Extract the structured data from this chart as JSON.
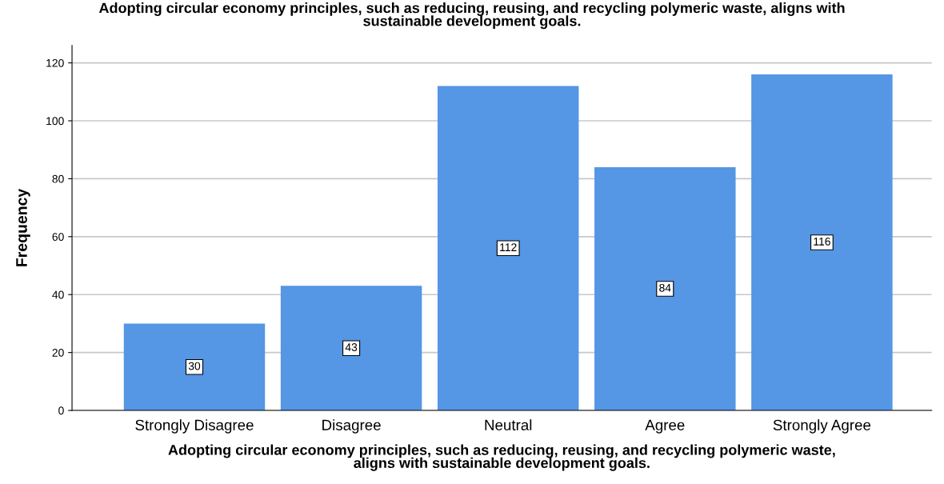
{
  "chart_data": {
    "type": "bar",
    "title": "Adopting circular economy principles, such as reducing, reusing, and recycling polymeric waste, aligns with\nsustainable development goals.",
    "xlabel": "Adopting circular economy principles, such as reducing, reusing, and recycling polymeric waste,\naligns with sustainable development goals.",
    "ylabel": "Frequency",
    "categories": [
      "Strongly Disagree",
      "Disagree",
      "Neutral",
      "Agree",
      "Strongly Agree"
    ],
    "values": [
      30,
      43,
      112,
      84,
      116
    ],
    "color": "#5596e5",
    "ylim": [
      0,
      126
    ],
    "yticks": [
      0,
      20,
      40,
      60,
      80,
      100,
      120
    ],
    "grid": "y",
    "data_labels": true
  }
}
